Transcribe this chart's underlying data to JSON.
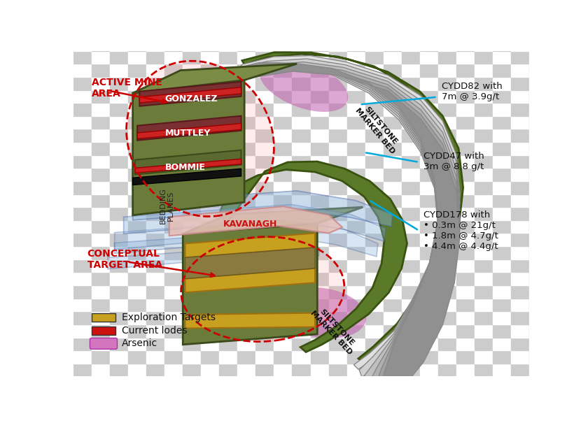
{
  "fig_w": 8.4,
  "fig_h": 6.05,
  "dpi": 100,
  "checker_size": 0.04,
  "checker_colors": [
    "#cccccc",
    "#ffffff"
  ],
  "green_arch_color": "#5a7a2a",
  "green_arch_edge": "#3a5210",
  "strata_colors": [
    "#e0e0e0",
    "#d0d0d0",
    "#c0c0c0",
    "#b0b0b0",
    "#a0a0a0",
    "#909090"
  ],
  "strata_edge": "#888888",
  "blue_face": "#8ab0d8",
  "blue_edge": "#4060a0",
  "block_face": "#6b7c3a",
  "block_face_top": "#7a8c45",
  "block_edge": "#3a4a1a",
  "gonzalez_outer": "#7a3030",
  "gonzalez_inner": "#cc2222",
  "muttley_outer": "#7a3030",
  "muttley_inner": "#cc2222",
  "bommie_outer": "#5a6a30",
  "bommie_inner": "#cc2222",
  "kavanagh_face": "#e8c0b8",
  "kavanagh_edge": "#cc8888",
  "gold_face": "#c8a020",
  "gold_edge": "#a07010",
  "arsenic_face": "#c060b0",
  "red_dash_color": "#cc0000",
  "cyan_color": "#00aadd",
  "text_dark": "#111111",
  "text_red": "#cc0000",
  "text_white": "#ffffff",
  "text_kavanagh": "#cc1111",
  "legend_items": [
    {
      "color": "#d475c0",
      "label": "Arsenic"
    },
    {
      "color": "#cc1111",
      "label": "Current lodes"
    },
    {
      "color": "#c8a020",
      "label": "Exploration Targets"
    }
  ]
}
